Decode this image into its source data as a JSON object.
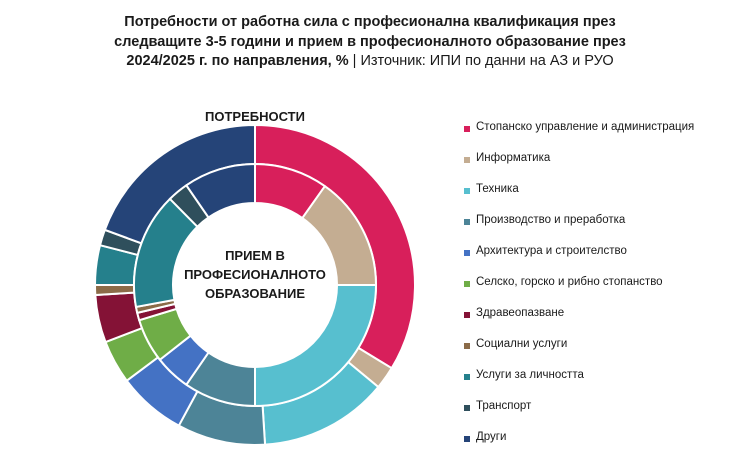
{
  "title": {
    "line1": "Потребности от работна сила с професионална квалификация през",
    "line2": "следващите 3-5 години и прием в професионалното образование през",
    "line3_bold": "2024/2025 г. по направления, % ",
    "line3_sep": "| ",
    "line3_source": "Източник: ИПИ по данни на АЗ и РУО"
  },
  "labels": {
    "outer_ring": "ПОТРЕБНОСТИ",
    "inner_ring_line1": "ПРИЕМ В",
    "inner_ring_line2": "ПРОФЕСИОНАЛНОТО",
    "inner_ring_line3": "ОБРАЗОВАНИЕ"
  },
  "chart_data": {
    "type": "pie",
    "subtype": "double-donut",
    "title": "Потребности от работна сила с професионална квалификация през следващите 3-5 години и прием в професионалното образование през 2024/2025 г. по направления, %",
    "source": "Източник: ИПИ по данни на АЗ и РУО",
    "legend_position": "right",
    "categories": [
      "Стопанско управление и администрация",
      "Информатика",
      "Техника",
      "Производство и преработка",
      "Архитектура и строителство",
      "Селско, горско и рибно стопанство",
      "Здравеопазване",
      "Социални услуги",
      "Услуги за личността",
      "Транспорт",
      "Други"
    ],
    "colors": [
      "#d81f5b",
      "#c4ad92",
      "#57bfcf",
      "#4d8497",
      "#4472c4",
      "#6fad47",
      "#841236",
      "#8b6b48",
      "#25808c",
      "#2f4f5c",
      "#254478"
    ],
    "series": [
      {
        "name": "ПОТРЕБНОСТИ",
        "ring": "outer",
        "values": [
          33.7,
          2.3,
          13.0,
          8.9,
          6.9,
          4.4,
          4.8,
          1.0,
          4.0,
          1.6,
          19.4
        ]
      },
      {
        "name": "ПРИЕМ В ПРОФЕСИОНАЛНОТО ОБРАЗОВАНИЕ",
        "ring": "inner",
        "values": [
          9.8,
          15.2,
          25.0,
          9.6,
          4.8,
          5.9,
          1.0,
          0.8,
          15.5,
          2.8,
          9.6
        ]
      }
    ]
  }
}
